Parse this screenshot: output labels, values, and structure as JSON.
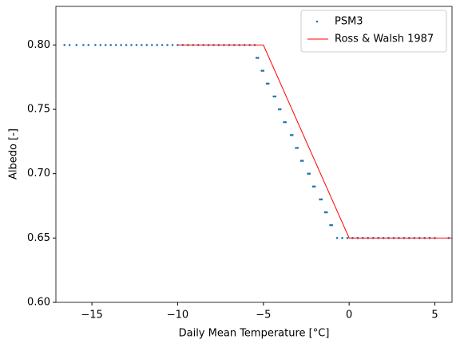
{
  "chart_data": {
    "type": "scatter",
    "xlabel": "Daily Mean Temperature [°C]",
    "ylabel": "Albedo [-]",
    "xlim": [
      -17.1,
      6.0
    ],
    "ylim": [
      0.6,
      0.83
    ],
    "xticks": [
      {
        "value": -15,
        "label": "−15"
      },
      {
        "value": -10,
        "label": "−10"
      },
      {
        "value": -5,
        "label": "−5"
      },
      0,
      5
    ],
    "yticks": [
      {
        "value": 0.6,
        "label": "0.60"
      },
      0.65,
      {
        "value": 0.7,
        "label": "0.70"
      },
      0.75,
      {
        "value": 0.8,
        "label": "0.80"
      }
    ],
    "legend": "upper right",
    "series": [
      {
        "name": "PSM3",
        "type": "scatter",
        "color": "#1f77b4",
        "x": [
          -16.6,
          -16.3,
          -15.9,
          -15.5,
          -15.2,
          -14.8,
          -14.5,
          -14.2,
          -13.9,
          -13.6,
          -13.3,
          -13.0,
          -12.7,
          -12.4,
          -12.1,
          -11.8,
          -11.5,
          -11.2,
          -10.9,
          -10.6,
          -10.3,
          -10.0,
          -9.7,
          -9.4,
          -9.1,
          -8.8,
          -8.5,
          -8.2,
          -7.9,
          -7.6,
          -7.3,
          -7.0,
          -6.7,
          -6.4,
          -6.1,
          -5.8,
          -5.5,
          -5.4,
          -5.3,
          -5.1,
          -5.0,
          -4.8,
          -4.7,
          -4.4,
          -4.3,
          -4.1,
          -4.0,
          -3.8,
          -3.7,
          -3.4,
          -3.3,
          -3.1,
          -3.0,
          -2.8,
          -2.7,
          -2.4,
          -2.3,
          -2.1,
          -2.0,
          -1.7,
          -1.6,
          -1.4,
          -1.3,
          -1.1,
          -1.0,
          -0.7,
          -0.4,
          -0.1,
          0.2,
          0.5,
          0.8,
          1.1,
          1.4,
          1.7,
          2.0,
          2.3,
          2.6,
          2.9,
          3.2,
          3.5,
          3.8,
          4.1,
          4.4,
          4.7,
          5.0,
          5.8
        ],
        "values": [
          0.8,
          0.8,
          0.8,
          0.8,
          0.8,
          0.8,
          0.8,
          0.8,
          0.8,
          0.8,
          0.8,
          0.8,
          0.8,
          0.8,
          0.8,
          0.8,
          0.8,
          0.8,
          0.8,
          0.8,
          0.8,
          0.8,
          0.8,
          0.8,
          0.8,
          0.8,
          0.8,
          0.8,
          0.8,
          0.8,
          0.8,
          0.8,
          0.8,
          0.8,
          0.8,
          0.8,
          0.8,
          0.79,
          0.79,
          0.78,
          0.78,
          0.77,
          0.77,
          0.76,
          0.76,
          0.75,
          0.75,
          0.74,
          0.74,
          0.73,
          0.73,
          0.72,
          0.72,
          0.71,
          0.71,
          0.7,
          0.7,
          0.69,
          0.69,
          0.68,
          0.68,
          0.67,
          0.67,
          0.66,
          0.66,
          0.65,
          0.65,
          0.65,
          0.65,
          0.65,
          0.65,
          0.65,
          0.65,
          0.65,
          0.65,
          0.65,
          0.65,
          0.65,
          0.65,
          0.65,
          0.65,
          0.65,
          0.65,
          0.65,
          0.65,
          0.65
        ]
      },
      {
        "name": "Ross & Walsh 1987",
        "type": "line",
        "color": "#ff0000",
        "x": [
          -10,
          -5,
          0,
          6
        ],
        "values": [
          0.8,
          0.8,
          0.65,
          0.65
        ]
      }
    ]
  }
}
